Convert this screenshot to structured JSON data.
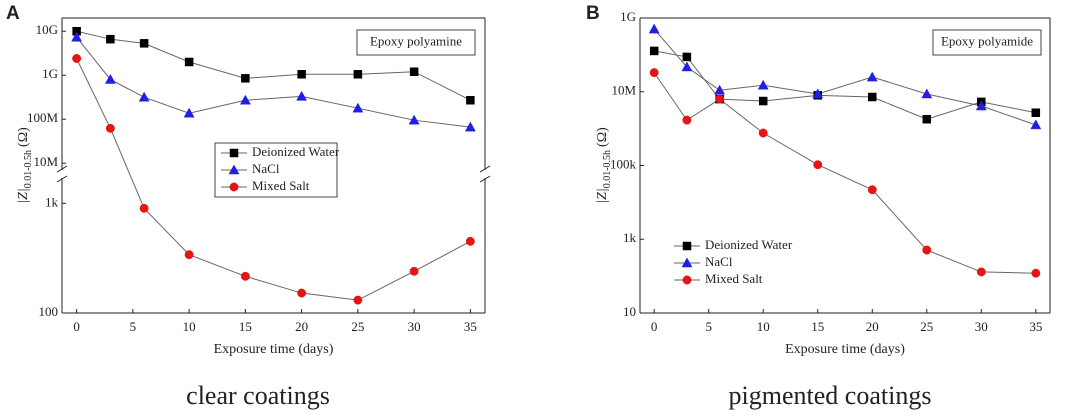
{
  "chart_data": [
    {
      "type": "line",
      "panel": "A",
      "annotation": "Epoxy polyamine",
      "caption": "clear coatings",
      "xlabel": "Exposure time (days)",
      "ylabel": "|Z|",
      "ylabel_sub": "0.01-0.5h",
      "ylabel_unit": "(Ω)",
      "log_y": true,
      "ylim": [
        100,
        20000000000
      ],
      "ybreak": [
        1700,
        7000000
      ],
      "xlim": [
        -1.3,
        36.3
      ],
      "xticks": [
        0,
        5,
        10,
        15,
        20,
        25,
        30,
        35
      ],
      "yticks": [
        100,
        {
          "value": 1000,
          "label": "1k"
        },
        {
          "value": 10000000,
          "label": "10M"
        },
        {
          "value": 100000000,
          "label": "100M"
        },
        {
          "value": 1000000000,
          "label": "1G"
        },
        {
          "value": 10000000000,
          "label": "10G"
        }
      ],
      "x": [
        0,
        3,
        6,
        10,
        15,
        20,
        25,
        30,
        35
      ],
      "line_color": "#666666",
      "legend": "center",
      "series": [
        {
          "name": "Deionized Water",
          "color": "#000000",
          "marker": "square",
          "values": [
            10000000000,
            6600000000,
            5300000000,
            2000000000,
            850000000,
            1050000000,
            1050000000,
            1200000000,
            270000000
          ]
        },
        {
          "name": "NaCl",
          "color": "#1f1fe6",
          "marker": "triangle",
          "values": [
            7300000000,
            800000000,
            316000000,
            137000000,
            270000000,
            330000000,
            178000000,
            95000000,
            66000000
          ]
        },
        {
          "name": "Mixed Salt",
          "color": "#e61414",
          "marker": "circle",
          "values": [
            2400000000,
            62000000,
            900,
            340,
            216,
            152,
            131,
            240,
            450
          ]
        }
      ]
    },
    {
      "type": "line",
      "panel": "B",
      "annotation": "Epoxy polyamide",
      "caption": "pigmented coatings",
      "xlabel": "Exposure time (days)",
      "ylabel": "|Z|",
      "ylabel_sub": "0.01-0.5h",
      "ylabel_unit": "(Ω)",
      "log_y": true,
      "ylim": [
        10,
        1000000000
      ],
      "xlim": [
        -1.3,
        36.3
      ],
      "xticks": [
        0,
        5,
        10,
        15,
        20,
        25,
        30,
        35
      ],
      "yticks": [
        10,
        {
          "value": 1000,
          "label": "1k"
        },
        {
          "value": 100000,
          "label": "100k"
        },
        {
          "value": 10000000,
          "label": "10M"
        },
        {
          "value": 1000000000,
          "label": "1G"
        }
      ],
      "x": [
        0,
        3,
        6,
        10,
        15,
        20,
        25,
        30,
        35
      ],
      "line_color": "#666666",
      "legend": "lower left",
      "series": [
        {
          "name": "Deionized Water",
          "color": "#000000",
          "marker": "square",
          "values": [
            128000000,
            88000000,
            6300000,
            5600000,
            8000000,
            7200000,
            1800000,
            5300000,
            2700000
          ]
        },
        {
          "name": "NaCl",
          "color": "#1f1fe6",
          "marker": "triangle",
          "values": [
            500000000,
            47000000,
            11000000,
            15000000,
            8700000,
            25000000,
            8700000,
            4100000,
            1260000
          ]
        },
        {
          "name": "Mixed Salt",
          "color": "#e61414",
          "marker": "circle",
          "values": [
            33000000,
            1700000,
            6300000,
            760000,
            105000,
            22000,
            510,
            130,
            120
          ]
        }
      ]
    }
  ]
}
